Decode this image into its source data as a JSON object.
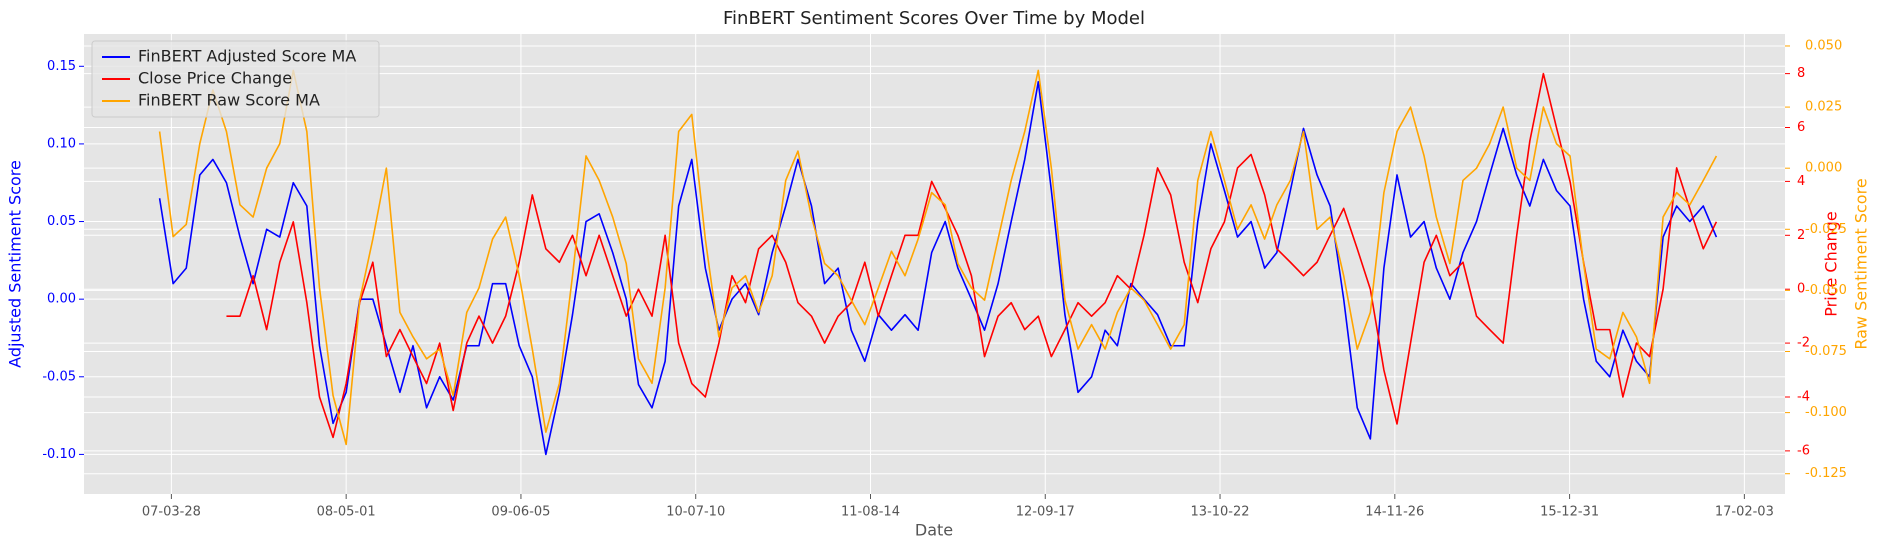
{
  "chart_data": {
    "type": "line",
    "title": "FinBERT Sentiment Scores Over Time by Model",
    "xlabel": "Date",
    "ylabel": "Adjusted Sentiment Score",
    "y2label": "Price Change",
    "y3label": "Raw Sentiment Score",
    "grid": true,
    "legend": "upper left",
    "xlim": [
      "06-09-09",
      "17-05-07"
    ],
    "xticks": [
      "07-03-28",
      "08-05-01",
      "09-06-05",
      "10-07-10",
      "11-08-14",
      "12-09-17",
      "13-10-22",
      "14-11-26",
      "15-12-31",
      "17-02-03"
    ],
    "ylim": [
      -0.1255,
      0.1708
    ],
    "yticks": [
      {
        "value": -0.1,
        "label": "-0.10"
      },
      -0.05,
      {
        "value": 0,
        "label": "0.00"
      },
      0.05,
      {
        "value": 0.1,
        "label": "0.10"
      },
      0.15
    ],
    "y2lim": [
      -7.6,
      9.47
    ],
    "y2ticks": [
      -6,
      -4,
      -2,
      0,
      2,
      4,
      6,
      8
    ],
    "y3lim": [
      -0.1333,
      0.0549
    ],
    "y3ticks": [
      -0.125,
      {
        "value": -0.1,
        "label": "-0.100"
      },
      {
        "value": -0.075,
        "label": "-0.075"
      },
      {
        "value": -0.05,
        "label": "-0.050"
      },
      {
        "value": -0.025,
        "label": "-0.025"
      },
      {
        "value": 0,
        "label": "0.000"
      },
      {
        "value": 0.025,
        "label": "0.025"
      },
      {
        "value": 0.05,
        "label": "0.050"
      }
    ],
    "x": [
      "07-03-01",
      "07-04-01",
      "07-05-01",
      "07-06-01",
      "07-07-01",
      "07-08-01",
      "07-09-01",
      "07-10-01",
      "07-11-01",
      "07-12-01",
      "08-01-01",
      "08-02-01",
      "08-03-01",
      "08-04-01",
      "08-05-01",
      "08-06-01",
      "08-07-01",
      "08-08-01",
      "08-09-01",
      "08-10-01",
      "08-11-01",
      "08-12-01",
      "09-01-01",
      "09-02-01",
      "09-03-01",
      "09-04-01",
      "09-05-01",
      "09-06-01",
      "09-07-01",
      "09-08-01",
      "09-09-01",
      "09-10-01",
      "09-11-01",
      "09-12-01",
      "10-01-01",
      "10-02-01",
      "10-03-01",
      "10-04-01",
      "10-05-01",
      "10-06-01",
      "10-07-01",
      "10-08-01",
      "10-09-01",
      "10-10-01",
      "10-11-01",
      "10-12-01",
      "11-01-01",
      "11-02-01",
      "11-03-01",
      "11-04-01",
      "11-05-01",
      "11-06-01",
      "11-07-01",
      "11-08-01",
      "11-09-01",
      "11-10-01",
      "11-11-01",
      "11-12-01",
      "12-01-01",
      "12-02-01",
      "12-03-01",
      "12-04-01",
      "12-05-01",
      "12-06-01",
      "12-07-01",
      "12-08-01",
      "12-09-01",
      "12-10-01",
      "12-11-01",
      "12-12-01",
      "13-01-01",
      "13-02-01",
      "13-03-01",
      "13-04-01",
      "13-05-01",
      "13-06-01",
      "13-07-01",
      "13-08-01",
      "13-09-01",
      "13-10-01",
      "13-11-01",
      "13-12-01",
      "14-01-01",
      "14-02-01",
      "14-03-01",
      "14-04-01",
      "14-05-01",
      "14-06-01",
      "14-07-01",
      "14-08-01",
      "14-09-01",
      "14-10-01",
      "14-11-01",
      "14-12-01",
      "15-01-01",
      "15-02-01",
      "15-03-01",
      "15-04-01",
      "15-05-01",
      "15-06-01",
      "15-07-01",
      "15-08-01",
      "15-09-01",
      "15-10-01",
      "15-11-01",
      "15-12-01",
      "16-01-01",
      "16-02-01",
      "16-03-01",
      "16-04-01",
      "16-05-01",
      "16-06-01",
      "16-07-01",
      "16-08-01",
      "16-09-01",
      "16-10-01",
      "16-11-01",
      "16-12-01"
    ],
    "series": [
      {
        "name": "FinBERT Adjusted Score MA",
        "color": "blue",
        "axis": "y",
        "values": [
          0.065,
          0.01,
          0.02,
          0.08,
          0.09,
          0.075,
          0.04,
          0.01,
          0.045,
          0.04,
          0.075,
          0.06,
          -0.03,
          -0.08,
          -0.06,
          0.0,
          0.0,
          -0.03,
          -0.06,
          -0.03,
          -0.07,
          -0.05,
          -0.065,
          -0.03,
          -0.03,
          0.01,
          0.01,
          -0.03,
          -0.05,
          -0.1,
          -0.06,
          -0.01,
          0.05,
          0.055,
          0.03,
          0.0,
          -0.055,
          -0.07,
          -0.04,
          0.06,
          0.09,
          0.02,
          -0.02,
          0.0,
          0.01,
          -0.01,
          0.03,
          0.06,
          0.09,
          0.06,
          0.01,
          0.02,
          -0.02,
          -0.04,
          -0.01,
          -0.02,
          -0.01,
          -0.02,
          0.03,
          0.05,
          0.02,
          0.0,
          -0.02,
          0.01,
          0.05,
          0.09,
          0.14,
          0.07,
          -0.01,
          -0.06,
          -0.05,
          -0.02,
          -0.03,
          0.01,
          0.0,
          -0.01,
          -0.03,
          -0.03,
          0.05,
          0.1,
          0.07,
          0.04,
          0.05,
          0.02,
          0.03,
          0.07,
          0.11,
          0.08,
          0.06,
          0.0,
          -0.07,
          -0.09,
          0.02,
          0.08,
          0.04,
          0.05,
          0.02,
          0.0,
          0.03,
          0.05,
          0.08,
          0.11,
          0.08,
          0.06,
          0.09,
          0.07,
          0.06,
          0.0,
          -0.04,
          -0.05,
          -0.02,
          -0.04,
          -0.05,
          0.04,
          0.06,
          0.05,
          0.06,
          0.04
        ]
      },
      {
        "name": "Close Price Change",
        "color": "red",
        "axis": "y2",
        "values": [
          null,
          null,
          null,
          null,
          null,
          -1.0,
          -1.0,
          0.5,
          -1.5,
          1.0,
          2.5,
          -0.5,
          -4,
          -5.5,
          -3.5,
          -0.5,
          1.0,
          -2.5,
          -1.5,
          -2.5,
          -3.5,
          -2.0,
          -4.5,
          -2.0,
          -1.0,
          -2.0,
          -1.0,
          1.0,
          3.5,
          1.5,
          1.0,
          2.0,
          0.5,
          2.0,
          0.5,
          -1.0,
          0.0,
          -1.0,
          2.0,
          -2.0,
          -3.5,
          -4.0,
          -2.0,
          0.5,
          -0.5,
          1.5,
          2.0,
          1.0,
          -0.5,
          -1.0,
          -2.0,
          -1.0,
          -0.5,
          1.0,
          -1.0,
          0.5,
          2.0,
          2.0,
          4.0,
          3.0,
          2.0,
          0.5,
          -2.5,
          -1.0,
          -0.5,
          -1.5,
          -1.0,
          -2.5,
          -1.5,
          -0.5,
          -1.0,
          -0.5,
          0.5,
          0.0,
          2.0,
          4.5,
          3.5,
          1.0,
          -0.5,
          1.5,
          2.5,
          4.5,
          5.0,
          3.5,
          1.5,
          1.0,
          0.5,
          1.0,
          2.0,
          3.0,
          1.5,
          0.0,
          -3.0,
          -5.0,
          -2.0,
          1.0,
          2.0,
          0.5,
          1.0,
          -1.0,
          -1.5,
          -2.0,
          2.0,
          5.5,
          8.0,
          6.0,
          4.0,
          1.0,
          -1.5,
          -1.5,
          -4.0,
          -2.0,
          -2.5,
          0.0,
          4.5,
          3.0,
          1.5,
          2.5
        ]
      },
      {
        "name": "FinBERT Raw Score MA",
        "color": "orange",
        "axis": "y3",
        "values": [
          0.015,
          -0.028,
          -0.023,
          0.01,
          0.032,
          0.015,
          -0.015,
          -0.02,
          0.0,
          0.01,
          0.04,
          0.015,
          -0.049,
          -0.093,
          -0.113,
          -0.054,
          -0.029,
          0.0,
          -0.059,
          -0.069,
          -0.078,
          -0.074,
          -0.093,
          -0.059,
          -0.049,
          -0.029,
          -0.02,
          -0.044,
          -0.074,
          -0.108,
          -0.088,
          -0.044,
          0.005,
          -0.005,
          -0.02,
          -0.039,
          -0.078,
          -0.088,
          -0.049,
          0.015,
          0.022,
          -0.029,
          -0.069,
          -0.049,
          -0.044,
          -0.059,
          -0.044,
          -0.005,
          0.007,
          -0.02,
          -0.039,
          -0.044,
          -0.054,
          -0.064,
          -0.049,
          -0.034,
          -0.044,
          -0.029,
          -0.01,
          -0.015,
          -0.039,
          -0.049,
          -0.054,
          -0.029,
          -0.005,
          0.015,
          0.04,
          0.0,
          -0.054,
          -0.074,
          -0.064,
          -0.074,
          -0.059,
          -0.049,
          -0.054,
          -0.064,
          -0.074,
          -0.064,
          -0.005,
          0.015,
          -0.005,
          -0.025,
          -0.015,
          -0.029,
          -0.015,
          -0.005,
          0.015,
          -0.025,
          -0.02,
          -0.044,
          -0.074,
          -0.059,
          -0.01,
          0.015,
          0.025,
          0.005,
          -0.02,
          -0.039,
          -0.005,
          0.0,
          0.01,
          0.025,
          0.0,
          -0.005,
          0.025,
          0.01,
          0.005,
          -0.039,
          -0.074,
          -0.078,
          -0.059,
          -0.069,
          -0.088,
          -0.02,
          -0.01,
          -0.015,
          -0.005,
          0.005
        ]
      }
    ]
  }
}
